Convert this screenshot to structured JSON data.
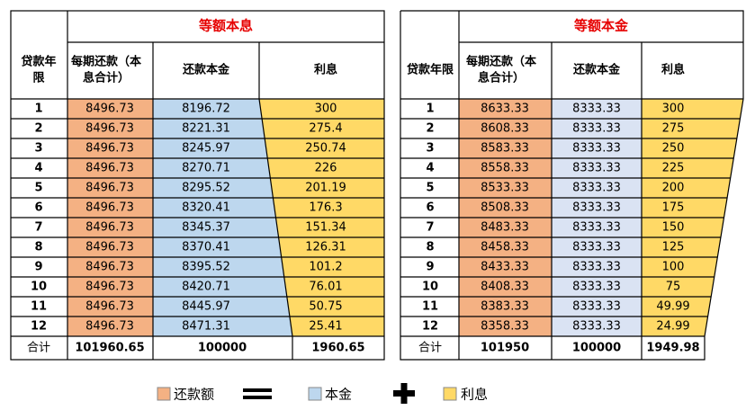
{
  "left": {
    "title": "等额本息",
    "headers": [
      [
        "贷款年",
        "限"
      ],
      [
        "每期还款（本",
        "息合计）"
      ],
      [
        "还款本金"
      ],
      [
        "利息"
      ]
    ],
    "rows": [
      [
        1,
        8496.73,
        8196.72,
        300
      ],
      [
        2,
        8496.73,
        8221.31,
        275.4
      ],
      [
        3,
        8496.73,
        8245.97,
        250.74
      ],
      [
        4,
        8496.73,
        8270.71,
        226
      ],
      [
        5,
        8496.73,
        8295.52,
        201.19
      ],
      [
        6,
        8496.73,
        8320.41,
        176.3
      ],
      [
        7,
        8496.73,
        8345.37,
        151.34
      ],
      [
        8,
        8496.73,
        8370.41,
        126.31
      ],
      [
        9,
        8496.73,
        8395.52,
        101.2
      ],
      [
        10,
        8496.73,
        8420.71,
        76.01
      ],
      [
        11,
        8496.73,
        8445.97,
        50.75
      ],
      [
        12,
        8496.73,
        8471.31,
        25.41
      ]
    ],
    "total": [
      "合计",
      101960.65,
      100000,
      1960.65
    ]
  },
  "right": {
    "title": "等额本金",
    "headers": [
      [
        "贷款年限"
      ],
      [
        "每期还款（本",
        "息合计）"
      ],
      [
        "还款本金"
      ],
      [
        "利息"
      ]
    ],
    "rows": [
      [
        1,
        8633.33,
        8333.33,
        300
      ],
      [
        2,
        8608.33,
        8333.33,
        275
      ],
      [
        3,
        8583.33,
        8333.33,
        250
      ],
      [
        4,
        8558.33,
        8333.33,
        225
      ],
      [
        5,
        8533.33,
        8333.33,
        200
      ],
      [
        6,
        8508.33,
        8333.33,
        175
      ],
      [
        7,
        8483.33,
        8333.33,
        150
      ],
      [
        8,
        8458.33,
        8333.33,
        125
      ],
      [
        9,
        8433.33,
        8333.33,
        100
      ],
      [
        10,
        8408.33,
        8333.33,
        75
      ],
      [
        11,
        8383.33,
        8333.33,
        49.99
      ],
      [
        12,
        8358.33,
        8333.33,
        24.99
      ]
    ],
    "total": [
      "合计",
      101950,
      100000,
      1949.98
    ]
  },
  "legend": [
    "还款额",
    "本金",
    "利息"
  ]
}
